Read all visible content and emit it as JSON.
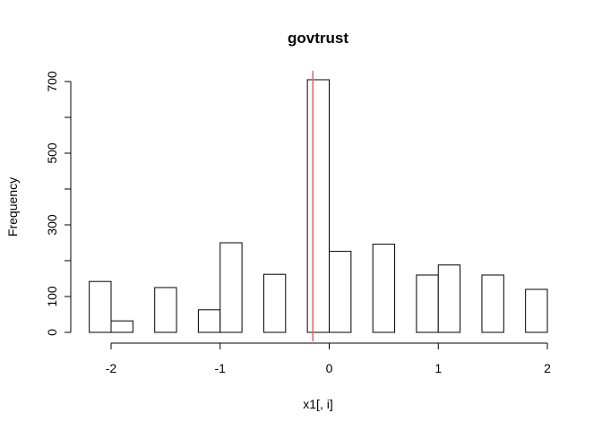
{
  "chart_data": {
    "type": "bar",
    "title": "govtrust",
    "xlabel": "x1[, i]",
    "ylabel": "Frequency",
    "xlim": [
      -2.2,
      2.0
    ],
    "ylim": [
      0,
      700
    ],
    "bin_width": 0.2,
    "bins": [
      {
        "start": -2.2,
        "end": -2.0,
        "count": 142
      },
      {
        "start": -2.0,
        "end": -1.8,
        "count": 32
      },
      {
        "start": -1.8,
        "end": -1.6,
        "count": 0
      },
      {
        "start": -1.6,
        "end": -1.4,
        "count": 125
      },
      {
        "start": -1.4,
        "end": -1.2,
        "count": 0
      },
      {
        "start": -1.2,
        "end": -1.0,
        "count": 63
      },
      {
        "start": -1.0,
        "end": -0.8,
        "count": 250
      },
      {
        "start": -0.8,
        "end": -0.6,
        "count": 0
      },
      {
        "start": -0.6,
        "end": -0.4,
        "count": 162
      },
      {
        "start": -0.4,
        "end": -0.2,
        "count": 0
      },
      {
        "start": -0.2,
        "end": 0.0,
        "count": 705
      },
      {
        "start": 0.0,
        "end": 0.2,
        "count": 226
      },
      {
        "start": 0.2,
        "end": 0.4,
        "count": 0
      },
      {
        "start": 0.4,
        "end": 0.6,
        "count": 246
      },
      {
        "start": 0.6,
        "end": 0.8,
        "count": 0
      },
      {
        "start": 0.8,
        "end": 1.0,
        "count": 160
      },
      {
        "start": 1.0,
        "end": 1.2,
        "count": 188
      },
      {
        "start": 1.2,
        "end": 1.4,
        "count": 0
      },
      {
        "start": 1.4,
        "end": 1.6,
        "count": 160
      },
      {
        "start": 1.6,
        "end": 1.8,
        "count": 0
      },
      {
        "start": 1.8,
        "end": 2.0,
        "count": 120
      }
    ],
    "x_ticks": [
      -2,
      -1,
      0,
      1,
      2
    ],
    "x_tick_labels": [
      "-2",
      "-1",
      "0",
      "1",
      "2"
    ],
    "y_ticks": [
      0,
      100,
      200,
      300,
      400,
      500,
      600,
      700
    ],
    "y_tick_labels": [
      "0",
      "100",
      "",
      "300",
      "",
      "500",
      "",
      "700"
    ],
    "vline": {
      "x": -0.15,
      "color": "#e8636b"
    },
    "bar_fill": "#ffffff",
    "bar_stroke": "#000000"
  }
}
